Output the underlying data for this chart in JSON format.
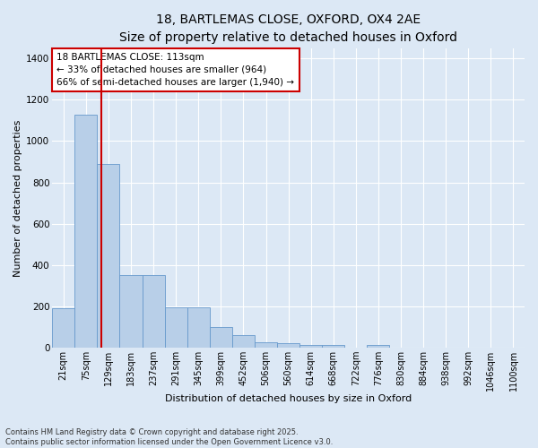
{
  "title_line1": "18, BARTLEMAS CLOSE, OXFORD, OX4 2AE",
  "title_line2": "Size of property relative to detached houses in Oxford",
  "xlabel": "Distribution of detached houses by size in Oxford",
  "ylabel": "Number of detached properties",
  "categories": [
    "21sqm",
    "75sqm",
    "129sqm",
    "183sqm",
    "237sqm",
    "291sqm",
    "345sqm",
    "399sqm",
    "452sqm",
    "506sqm",
    "560sqm",
    "614sqm",
    "668sqm",
    "722sqm",
    "776sqm",
    "830sqm",
    "884sqm",
    "938sqm",
    "992sqm",
    "1046sqm",
    "1100sqm"
  ],
  "values": [
    190,
    1130,
    890,
    350,
    350,
    195,
    195,
    100,
    60,
    25,
    20,
    12,
    12,
    0,
    12,
    0,
    0,
    0,
    0,
    0,
    0
  ],
  "bar_color": "#b8cfe8",
  "bar_edge_color": "#6699cc",
  "vline_color": "#cc0000",
  "vline_x": 1.67,
  "annotation_text": "18 BARTLEMAS CLOSE: 113sqm\n← 33% of detached houses are smaller (964)\n66% of semi-detached houses are larger (1,940) →",
  "annotation_box_color": "#cc0000",
  "ylim": [
    0,
    1450
  ],
  "yticks": [
    0,
    200,
    400,
    600,
    800,
    1000,
    1200,
    1400
  ],
  "background_color": "#dce8f5",
  "plot_bg_color": "#dce8f5",
  "grid_color": "#ffffff",
  "footer_line1": "Contains HM Land Registry data © Crown copyright and database right 2025.",
  "footer_line2": "Contains public sector information licensed under the Open Government Licence v3.0.",
  "title_fontsize": 10,
  "subtitle_fontsize": 9,
  "tick_fontsize": 7,
  "annot_fontsize": 7.5,
  "ylabel_fontsize": 8,
  "xlabel_fontsize": 8
}
